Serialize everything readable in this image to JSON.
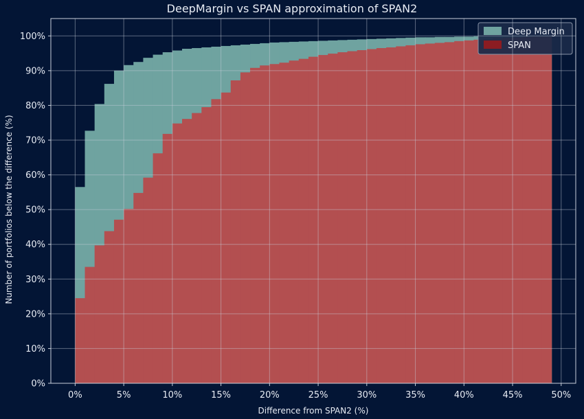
{
  "chart_data": {
    "type": "bar",
    "title": "DeepMargin vs SPAN approximation of SPAN2",
    "xlabel": "Difference from SPAN2 (%)",
    "ylabel": "Number of portfolios below the difference (%)",
    "xlim": [
      -2.5,
      51.5
    ],
    "ylim": [
      0,
      105
    ],
    "xticks": [
      0,
      5,
      10,
      15,
      20,
      25,
      30,
      35,
      40,
      45,
      50
    ],
    "xtick_labels": [
      "0%",
      "5%",
      "10%",
      "15%",
      "20%",
      "25%",
      "30%",
      "35%",
      "40%",
      "45%",
      "50%"
    ],
    "yticks": [
      0,
      10,
      20,
      30,
      40,
      50,
      60,
      70,
      80,
      90,
      100
    ],
    "ytick_labels": [
      "0%",
      "10%",
      "20%",
      "30%",
      "40%",
      "50%",
      "60%",
      "70%",
      "80%",
      "90%",
      "100%"
    ],
    "bin_width": 1,
    "bin_starts": [
      0,
      1,
      2,
      3,
      4,
      5,
      6,
      7,
      8,
      9,
      10,
      11,
      12,
      13,
      14,
      15,
      16,
      17,
      18,
      19,
      20,
      21,
      22,
      23,
      24,
      25,
      26,
      27,
      28,
      29,
      30,
      31,
      32,
      33,
      34,
      35,
      36,
      37,
      38,
      39,
      40,
      41,
      42,
      43,
      44,
      45,
      46,
      47,
      48
    ],
    "grid": true,
    "legend_position": "top-right",
    "series": [
      {
        "name": "Deep Margin",
        "color": "#6fa3a0",
        "values": [
          56.5,
          72.7,
          80.4,
          86.2,
          90.0,
          91.6,
          92.5,
          93.7,
          94.6,
          95.3,
          95.8,
          96.3,
          96.5,
          96.7,
          96.9,
          97.1,
          97.3,
          97.5,
          97.7,
          97.9,
          98.1,
          98.2,
          98.3,
          98.4,
          98.5,
          98.6,
          98.7,
          98.8,
          98.9,
          99.0,
          99.1,
          99.2,
          99.3,
          99.4,
          99.5,
          99.6,
          99.6,
          99.7,
          99.7,
          99.8,
          99.8,
          99.9,
          99.9,
          99.9,
          100.0,
          100.0,
          100.0,
          100.0,
          100.0
        ]
      },
      {
        "name": "SPAN",
        "color": "#b34f50",
        "legend_color": "#8b1c22",
        "values": [
          24.5,
          33.5,
          39.7,
          43.8,
          47.1,
          50.2,
          54.8,
          59.2,
          66.2,
          71.8,
          74.8,
          76.1,
          77.8,
          79.5,
          81.8,
          83.7,
          87.2,
          89.5,
          90.8,
          91.5,
          91.9,
          92.3,
          92.9,
          93.4,
          94.0,
          94.5,
          94.9,
          95.3,
          95.6,
          95.9,
          96.2,
          96.5,
          96.7,
          97.0,
          97.3,
          97.6,
          97.8,
          98.0,
          98.2,
          98.5,
          98.7,
          98.9,
          99.1,
          99.3,
          99.5,
          99.6,
          99.7,
          99.8,
          99.8
        ]
      }
    ]
  }
}
